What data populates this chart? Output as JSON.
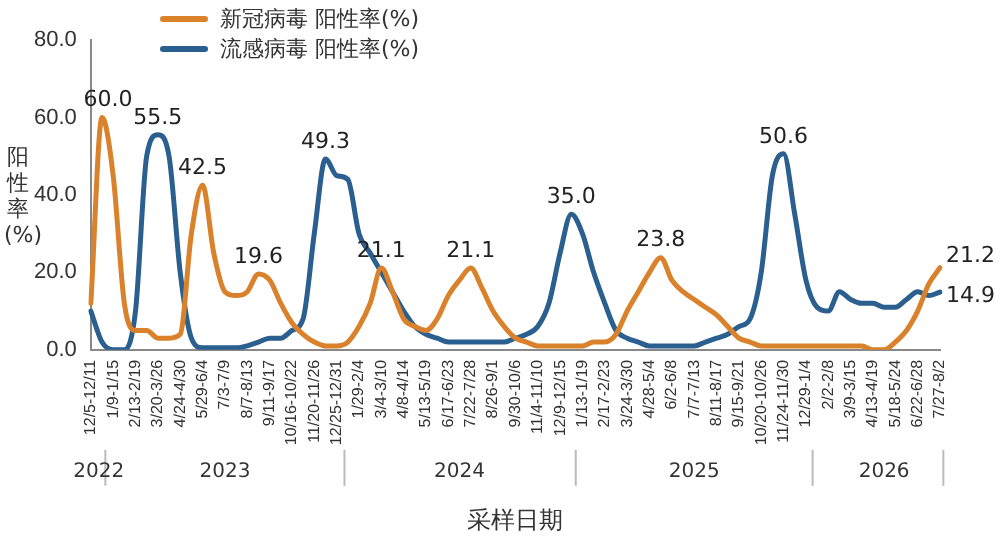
{
  "chart_data": {
    "type": "line",
    "xlabel": "采样日期",
    "ylabel": "阳性率(%)",
    "categories": [
      "12/5-12/11",
      null,
      "1/9-1/15",
      null,
      "2/13-2/19",
      null,
      "3/20-3/26",
      null,
      "4/24-4/30",
      null,
      "5/29-6/4",
      null,
      "7/3-7/9",
      null,
      "8/7-8/13",
      null,
      "9/11-9/17",
      null,
      "10/16-10/22",
      null,
      "11/20-11/26",
      null,
      "12/25-12/31",
      null,
      "1/29-2/4",
      null,
      "3/4-3/10",
      null,
      "4/8-4/14",
      null,
      "5/13-5/19",
      null,
      "6/17-6/23",
      null,
      "7/22-7/28",
      null,
      "8/26-9/1",
      null,
      "9/30-10/6",
      null,
      "11/4-11/10",
      null,
      "12/9-12/15",
      null,
      "1/13-1/19",
      null,
      "2/17-2/23",
      null,
      "3/24-3/30",
      null,
      "4/28-5/4",
      null,
      "6/2-6/8",
      null,
      "7/7-7/13",
      null,
      "8/11-8/17",
      null,
      "9/15-9/21",
      null,
      "10/20-10/26",
      null,
      "11/24-11/30",
      null,
      "12/29-1/4",
      null,
      "2/2-2/8",
      null,
      "3/9-3/15",
      null,
      "4/13-4/19",
      null,
      "5/18-5/24",
      null,
      "6/22-6/28",
      null,
      "7/27-8/2"
    ],
    "series": [
      {
        "name": "新冠病毒 阳性率(%)",
        "color": "#d9822b",
        "values": [
          12,
          60,
          45,
          12,
          5,
          5,
          3,
          3,
          4,
          30,
          42.5,
          25,
          15,
          14,
          15,
          19.6,
          18,
          12,
          7,
          4,
          2,
          1,
          1,
          2,
          6,
          12,
          21.1,
          15,
          8,
          6,
          5,
          8,
          14,
          18,
          21.1,
          16,
          10,
          6,
          3,
          2,
          1,
          1,
          1,
          1,
          1,
          2,
          2,
          4,
          10,
          15,
          20,
          23.8,
          18,
          15,
          13,
          11,
          9,
          6,
          3,
          2,
          1,
          1,
          1,
          1,
          1,
          1,
          1,
          1,
          1,
          1,
          0,
          0,
          2,
          5,
          10,
          17,
          21.2
        ],
        "value_labels": [
          null,
          "60.0",
          null,
          null,
          null,
          null,
          null,
          null,
          null,
          null,
          "42.5",
          null,
          null,
          null,
          null,
          "19.6",
          null,
          null,
          null,
          null,
          null,
          null,
          null,
          null,
          null,
          null,
          "21.1",
          null,
          null,
          null,
          null,
          null,
          null,
          null,
          "21.1",
          null,
          null,
          null,
          null,
          null,
          null,
          null,
          null,
          null,
          null,
          null,
          null,
          null,
          null,
          null,
          null,
          "23.8",
          null,
          null,
          null,
          null,
          null,
          null,
          null,
          null,
          null,
          null,
          null,
          null,
          null,
          null,
          null,
          null,
          null,
          null,
          null,
          null,
          null,
          null,
          null,
          null,
          "21.2"
        ]
      },
      {
        "name": "流感病毒 阳性率(%)",
        "color": "#2a5f8f",
        "values": [
          10,
          2,
          0,
          0,
          10,
          50,
          55.5,
          50,
          20,
          3,
          0.5,
          0.5,
          0.5,
          0.5,
          1,
          2,
          3,
          3,
          5,
          8,
          30,
          49.3,
          45,
          44,
          30,
          25,
          20,
          15,
          10,
          6,
          4,
          3,
          2,
          2,
          2,
          2,
          2,
          2,
          3,
          4,
          6,
          12,
          25,
          35,
          30,
          20,
          12,
          5,
          3,
          2,
          1,
          1,
          1,
          1,
          1,
          2,
          3,
          4,
          6,
          8,
          20,
          45,
          50.6,
          35,
          18,
          11,
          10,
          15,
          13,
          12,
          12,
          11,
          11,
          13,
          15,
          14,
          14.9
        ],
        "value_labels": [
          null,
          null,
          null,
          null,
          null,
          null,
          "55.5",
          null,
          null,
          null,
          null,
          null,
          null,
          null,
          null,
          null,
          null,
          null,
          null,
          null,
          null,
          "49.3",
          null,
          null,
          null,
          null,
          null,
          null,
          null,
          null,
          null,
          null,
          null,
          null,
          null,
          null,
          null,
          null,
          null,
          null,
          null,
          null,
          null,
          "35.0",
          null,
          null,
          null,
          null,
          null,
          null,
          null,
          null,
          null,
          null,
          null,
          null,
          null,
          null,
          null,
          null,
          null,
          null,
          "50.6",
          null,
          null,
          null,
          null,
          null,
          null,
          null,
          null,
          null,
          null,
          null,
          null,
          null,
          "14.9"
        ]
      }
    ],
    "ylim": [
      0,
      80
    ],
    "yticks": [
      {
        "value": 0,
        "label": "0.0"
      },
      {
        "value": 20,
        "label": "20.0"
      },
      {
        "value": 40,
        "label": "40.0"
      },
      {
        "value": 60,
        "label": "60.0"
      },
      {
        "value": 80,
        "label": "80.0"
      }
    ],
    "grid": false,
    "legend": "top",
    "marker": "none",
    "line_style": "solid",
    "annotations": [
      "2022",
      "2023",
      "2024",
      "2025",
      "2026"
    ]
  }
}
